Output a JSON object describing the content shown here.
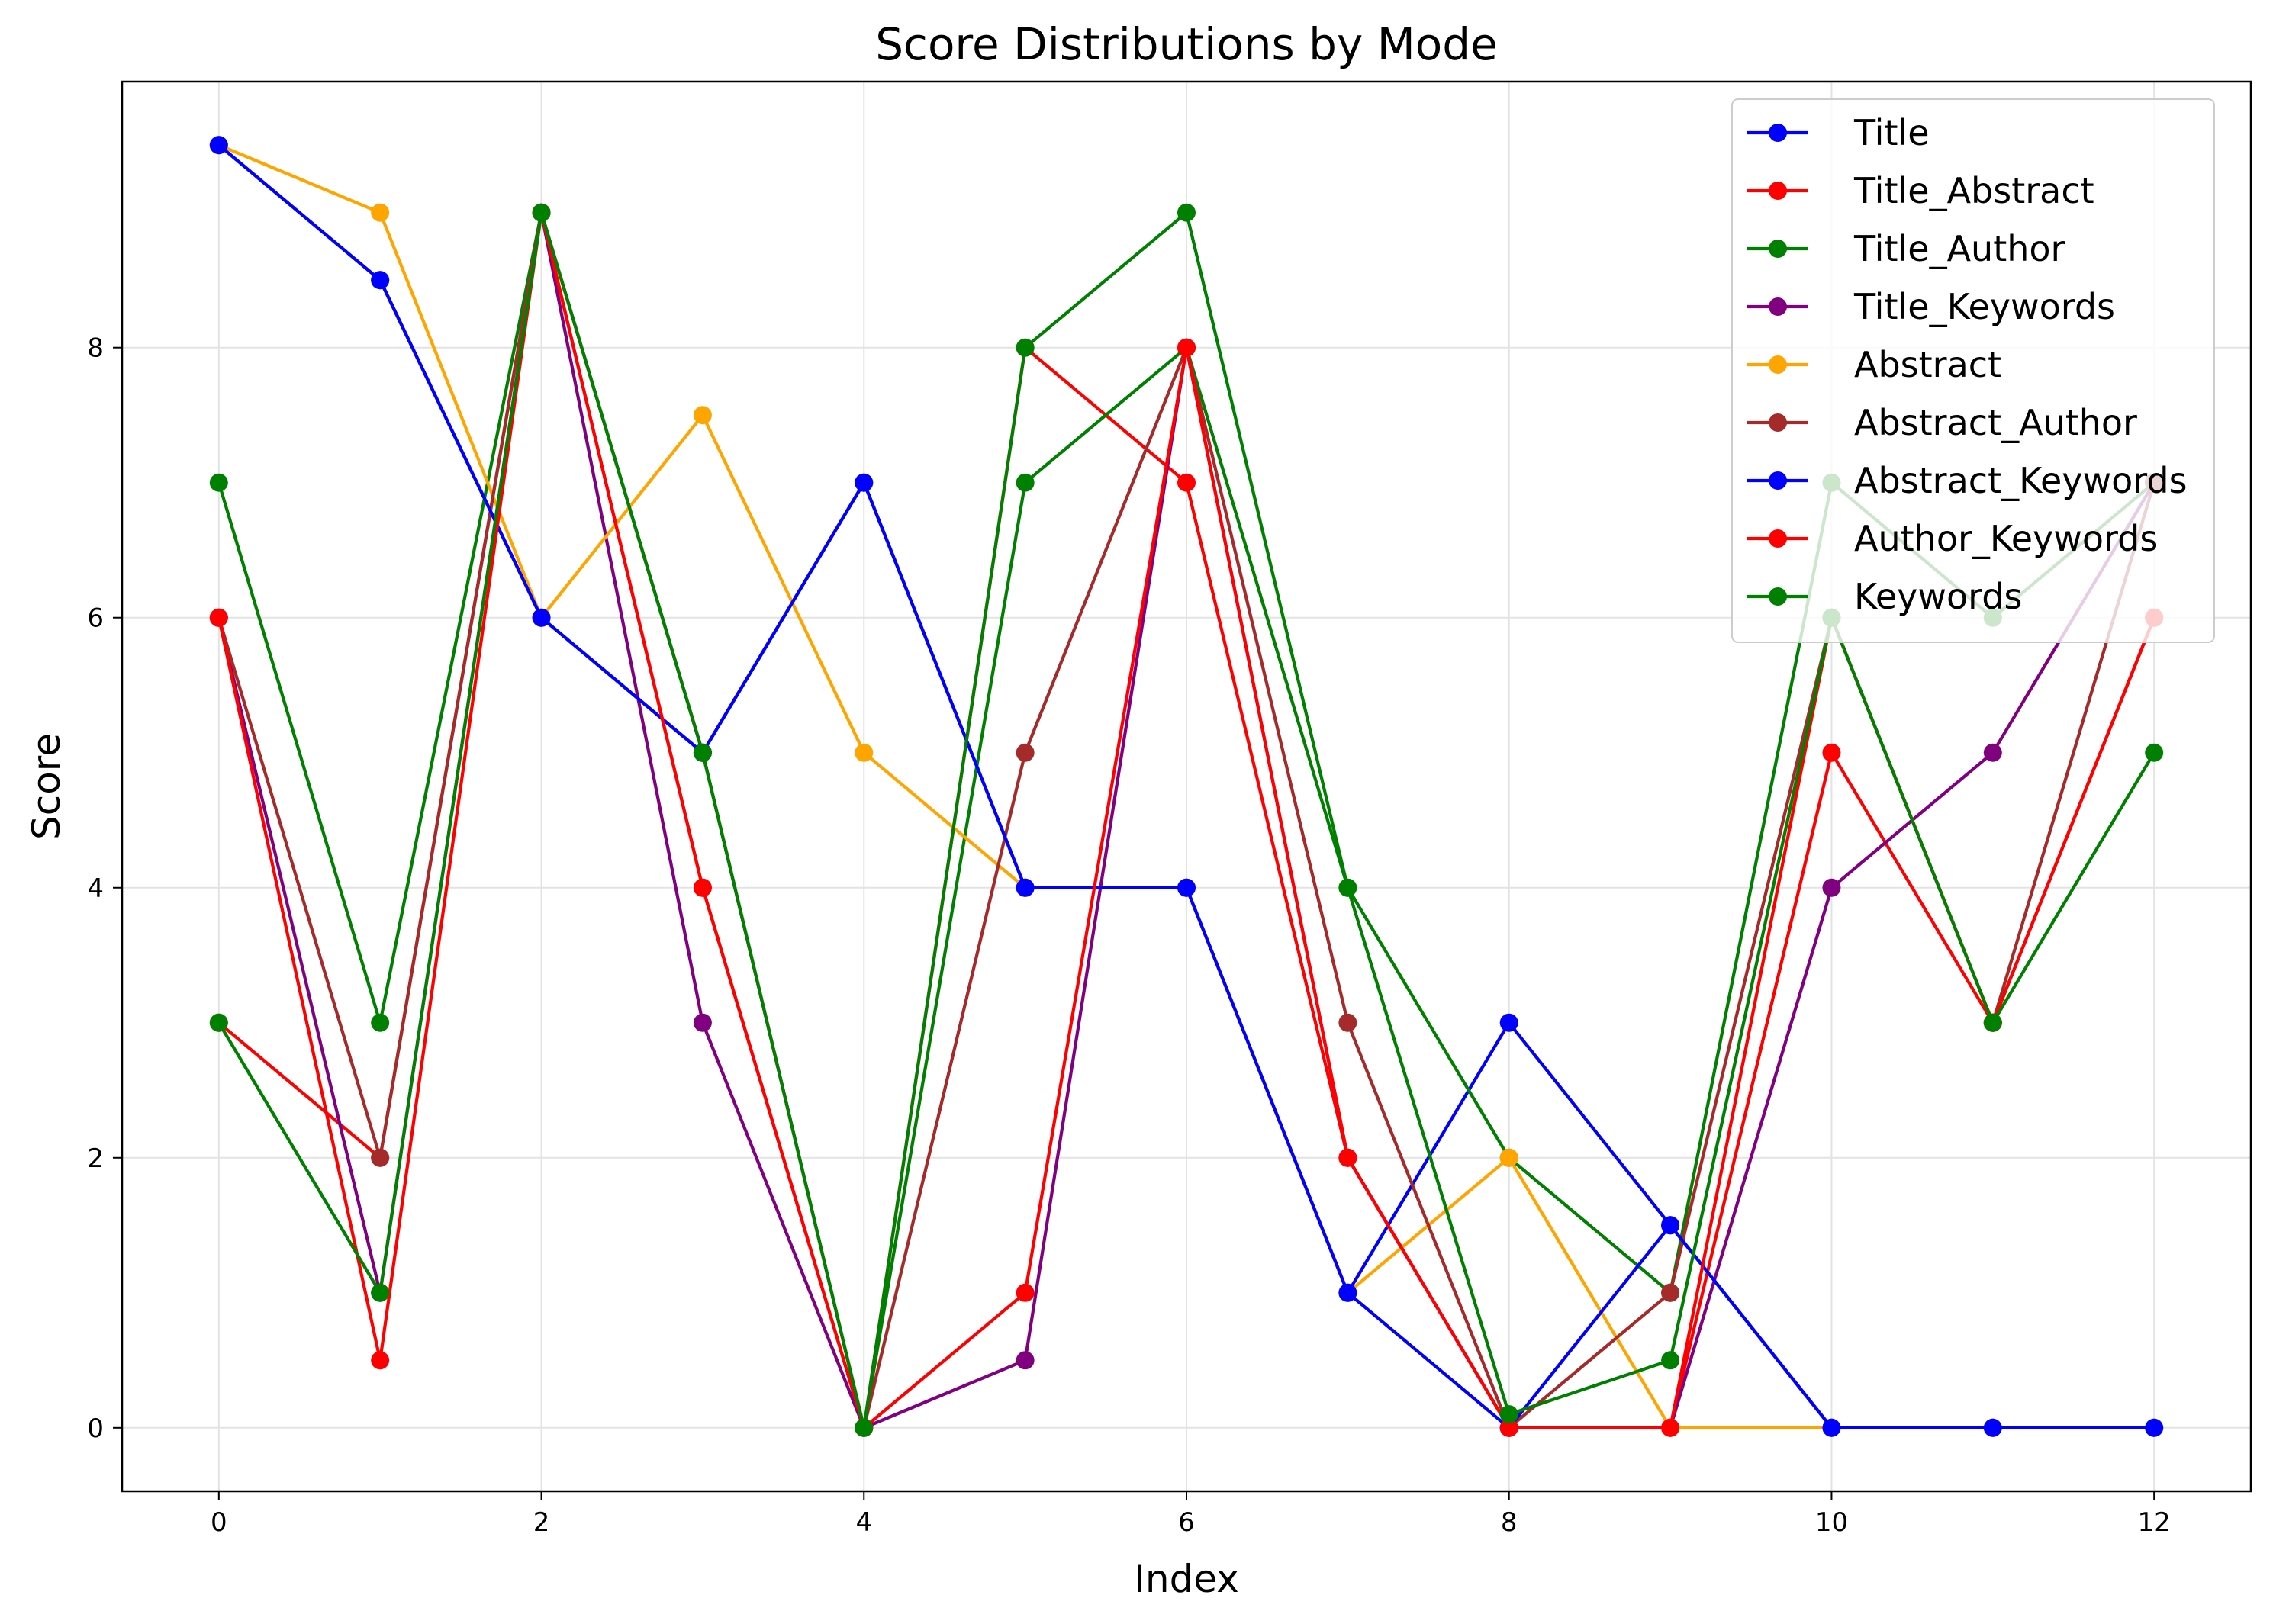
{
  "chart_data": {
    "type": "line",
    "title": "Score Distributions by Mode",
    "xlabel": "Index",
    "ylabel": "Score",
    "xlim": [
      -0.6,
      12.6
    ],
    "ylim": [
      -0.47,
      9.97
    ],
    "xticks": [
      0,
      2,
      4,
      6,
      8,
      10,
      12
    ],
    "yticks": [
      0,
      2,
      4,
      6,
      8
    ],
    "grid": true,
    "legend_position": "top-right",
    "x": [
      0,
      1,
      2,
      3,
      4,
      5,
      6,
      7,
      8,
      9,
      10,
      11,
      12
    ],
    "series": [
      {
        "name": "Title",
        "color": "#0000ff",
        "values": [
          9.5,
          8.5,
          6,
          5,
          7,
          4,
          4,
          1,
          3,
          1.5,
          0,
          0,
          0
        ]
      },
      {
        "name": "Title_Abstract",
        "color": "#ff0000",
        "values": [
          3,
          2,
          9,
          4,
          0,
          8,
          7,
          2,
          0,
          0,
          5,
          3,
          6
        ]
      },
      {
        "name": "Title_Author",
        "color": "#008000",
        "values": [
          7,
          3,
          9,
          5,
          0,
          7,
          8,
          4,
          2,
          1,
          7,
          6,
          7
        ]
      },
      {
        "name": "Title_Keywords",
        "color": "#800080",
        "values": [
          6,
          1,
          9,
          3,
          0,
          0.5,
          8,
          2,
          0,
          0,
          4,
          5,
          7
        ]
      },
      {
        "name": "Abstract",
        "color": "#ffa500",
        "values": [
          9.5,
          9,
          6,
          7.5,
          5,
          4,
          4,
          1,
          2,
          0,
          0,
          0,
          0
        ]
      },
      {
        "name": "Abstract_Author",
        "color": "#a52a2a",
        "values": [
          6,
          2,
          9,
          5,
          0,
          5,
          8,
          3,
          0,
          1,
          6,
          3,
          7
        ]
      },
      {
        "name": "Abstract_Keywords",
        "color": "#0000ff",
        "values": [
          9.5,
          8.5,
          6,
          5,
          7,
          4,
          4,
          1,
          0,
          1.5,
          0,
          0,
          0
        ]
      },
      {
        "name": "Author_Keywords",
        "color": "#ff0000",
        "values": [
          6,
          0.5,
          9,
          4,
          0,
          1,
          8,
          2,
          0,
          0,
          6,
          3,
          6
        ]
      },
      {
        "name": "Keywords",
        "color": "#008000",
        "values": [
          3,
          1,
          9,
          5,
          0,
          8,
          9,
          4,
          0.1,
          0.5,
          6,
          3,
          5
        ]
      }
    ]
  }
}
